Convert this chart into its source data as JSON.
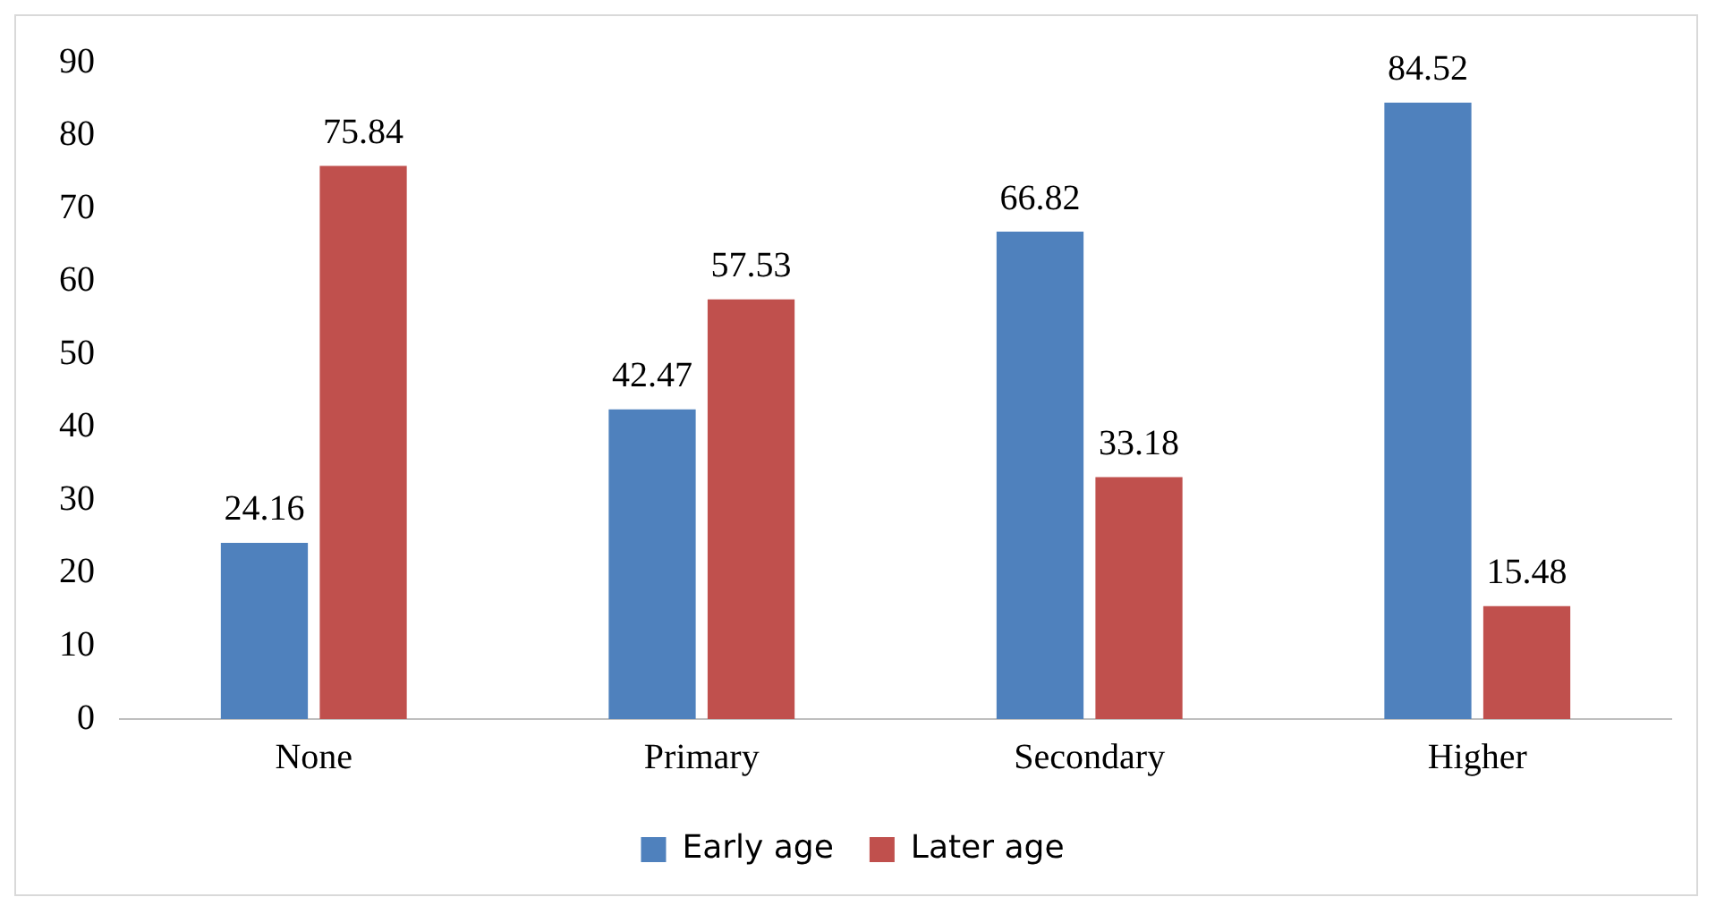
{
  "chart_data": {
    "type": "bar",
    "categories": [
      "None",
      "Primary",
      "Secondary",
      "Higher"
    ],
    "series": [
      {
        "name": "Early age",
        "color": "#4f81bd",
        "values": [
          24.16,
          42.47,
          66.82,
          84.52
        ]
      },
      {
        "name": "Later age",
        "color": "#c0504d",
        "values": [
          75.84,
          57.53,
          33.18,
          15.48
        ]
      }
    ],
    "ylim": [
      0,
      90
    ],
    "yticks": [
      0,
      10,
      20,
      30,
      40,
      50,
      60,
      70,
      80,
      90
    ],
    "grid": false,
    "legend": "bottom",
    "data_labels": true
  }
}
